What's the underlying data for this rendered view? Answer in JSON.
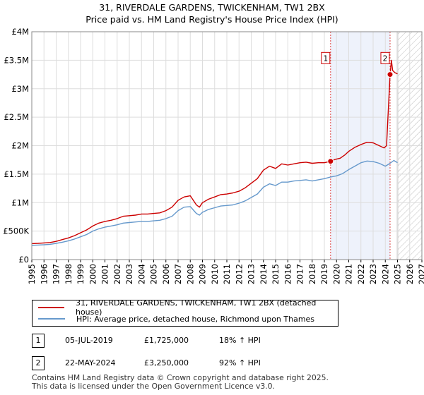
{
  "chart_data": {
    "type": "line",
    "title": "31, RIVERDALE GARDENS, TWICKENHAM, TW1 2BX",
    "subtitle": "Price paid vs. HM Land Registry's House Price Index (HPI)",
    "ylim": [
      0,
      4000000
    ],
    "xlim": [
      1995,
      2027
    ],
    "y_ticks": [
      {
        "value": 0,
        "label": "£0"
      },
      {
        "value": 500000,
        "label": "£500K"
      },
      {
        "value": 1000000,
        "label": "£1M"
      },
      {
        "value": 1500000,
        "label": "£1.5M"
      },
      {
        "value": 2000000,
        "label": "£2M"
      },
      {
        "value": 2500000,
        "label": "£2.5M"
      },
      {
        "value": 3000000,
        "label": "£3M"
      },
      {
        "value": 3500000,
        "label": "£3.5M"
      },
      {
        "value": 4000000,
        "label": "£4M"
      }
    ],
    "x_ticks": [
      "1995",
      "1996",
      "1997",
      "1998",
      "1999",
      "2000",
      "2001",
      "2002",
      "2003",
      "2004",
      "2005",
      "2006",
      "2007",
      "2008",
      "2009",
      "2010",
      "2011",
      "2012",
      "2013",
      "2014",
      "2015",
      "2016",
      "2017",
      "2018",
      "2019",
      "2020",
      "2021",
      "2022",
      "2023",
      "2024",
      "2025",
      "2026",
      "2027"
    ],
    "grid": true,
    "forecast_from": 2025.0,
    "series": [
      {
        "name": "31, RIVERDALE GARDENS, TWICKENHAM, TW1 2BX (detached house)",
        "color": "#cc0000",
        "x": [
          1995.0,
          1995.5,
          1996.0,
          1996.5,
          1997.0,
          1997.5,
          1998.0,
          1998.5,
          1999.0,
          1999.5,
          2000.0,
          2000.5,
          2001.0,
          2001.5,
          2002.0,
          2002.5,
          2003.0,
          2003.5,
          2004.0,
          2004.5,
          2005.0,
          2005.5,
          2006.0,
          2006.5,
          2007.0,
          2007.5,
          2008.0,
          2008.5,
          2008.75,
          2009.0,
          2009.5,
          2010.0,
          2010.5,
          2011.0,
          2011.5,
          2012.0,
          2012.5,
          2013.0,
          2013.5,
          2014.0,
          2014.5,
          2015.0,
          2015.5,
          2016.0,
          2016.5,
          2017.0,
          2017.5,
          2018.0,
          2018.5,
          2019.0,
          2019.51,
          2019.9,
          2020.3,
          2020.7,
          2021.0,
          2021.5,
          2022.0,
          2022.5,
          2023.0,
          2023.5,
          2023.9,
          2024.1,
          2024.39,
          2024.5,
          2024.6,
          2024.8,
          2025.0
        ],
        "values": [
          280000,
          285000,
          292000,
          300000,
          320000,
          350000,
          380000,
          420000,
          470000,
          520000,
          590000,
          640000,
          670000,
          690000,
          720000,
          760000,
          770000,
          780000,
          800000,
          800000,
          810000,
          820000,
          860000,
          920000,
          1040000,
          1100000,
          1120000,
          960000,
          920000,
          1000000,
          1060000,
          1100000,
          1140000,
          1150000,
          1170000,
          1200000,
          1260000,
          1340000,
          1420000,
          1570000,
          1640000,
          1600000,
          1680000,
          1660000,
          1680000,
          1700000,
          1710000,
          1690000,
          1700000,
          1700000,
          1725000,
          1760000,
          1780000,
          1840000,
          1900000,
          1970000,
          2020000,
          2060000,
          2050000,
          2000000,
          1960000,
          2000000,
          3250000,
          3500000,
          3320000,
          3280000,
          3260000
        ]
      },
      {
        "name": "HPI: Average price, detached house, Richmond upon Thames",
        "color": "#6699cc",
        "x": [
          1995.0,
          1995.5,
          1996.0,
          1996.5,
          1997.0,
          1997.5,
          1998.0,
          1998.5,
          1999.0,
          1999.5,
          2000.0,
          2000.5,
          2001.0,
          2001.5,
          2002.0,
          2002.5,
          2003.0,
          2003.5,
          2004.0,
          2004.5,
          2005.0,
          2005.5,
          2006.0,
          2006.5,
          2007.0,
          2007.5,
          2008.0,
          2008.5,
          2008.75,
          2009.0,
          2009.5,
          2010.0,
          2010.5,
          2011.0,
          2011.5,
          2012.0,
          2012.5,
          2013.0,
          2013.5,
          2014.0,
          2014.5,
          2015.0,
          2015.5,
          2016.0,
          2016.5,
          2017.0,
          2017.5,
          2018.0,
          2018.5,
          2019.0,
          2019.51,
          2020.0,
          2020.5,
          2021.0,
          2021.5,
          2022.0,
          2022.5,
          2023.0,
          2023.5,
          2024.0,
          2024.39,
          2024.7,
          2025.0
        ],
        "values": [
          250000,
          255000,
          260000,
          268000,
          285000,
          305000,
          330000,
          360000,
          400000,
          440000,
          500000,
          540000,
          570000,
          590000,
          610000,
          640000,
          650000,
          660000,
          670000,
          670000,
          680000,
          690000,
          720000,
          760000,
          860000,
          920000,
          930000,
          810000,
          780000,
          830000,
          880000,
          910000,
          940000,
          950000,
          960000,
          990000,
          1030000,
          1090000,
          1150000,
          1270000,
          1330000,
          1300000,
          1360000,
          1360000,
          1380000,
          1390000,
          1400000,
          1380000,
          1400000,
          1420000,
          1450000,
          1470000,
          1510000,
          1580000,
          1640000,
          1700000,
          1730000,
          1720000,
          1690000,
          1640000,
          1690000,
          1740000,
          1700000
        ]
      }
    ],
    "annotations": [
      {
        "label": "1",
        "x": 2019.51,
        "y": 1725000
      },
      {
        "label": "2",
        "x": 2024.39,
        "y": 3250000
      }
    ],
    "sales": [
      {
        "label": "1",
        "date": "05-JUL-2019",
        "price": "£1,725,000",
        "hpi": "18% ↑ HPI"
      },
      {
        "label": "2",
        "date": "22-MAY-2024",
        "price": "£3,250,000",
        "hpi": "92% ↑ HPI"
      }
    ]
  },
  "footer": {
    "line1": "Contains HM Land Registry data © Crown copyright and database right 2025.",
    "line2": "This data is licensed under the Open Government Licence v3.0."
  }
}
